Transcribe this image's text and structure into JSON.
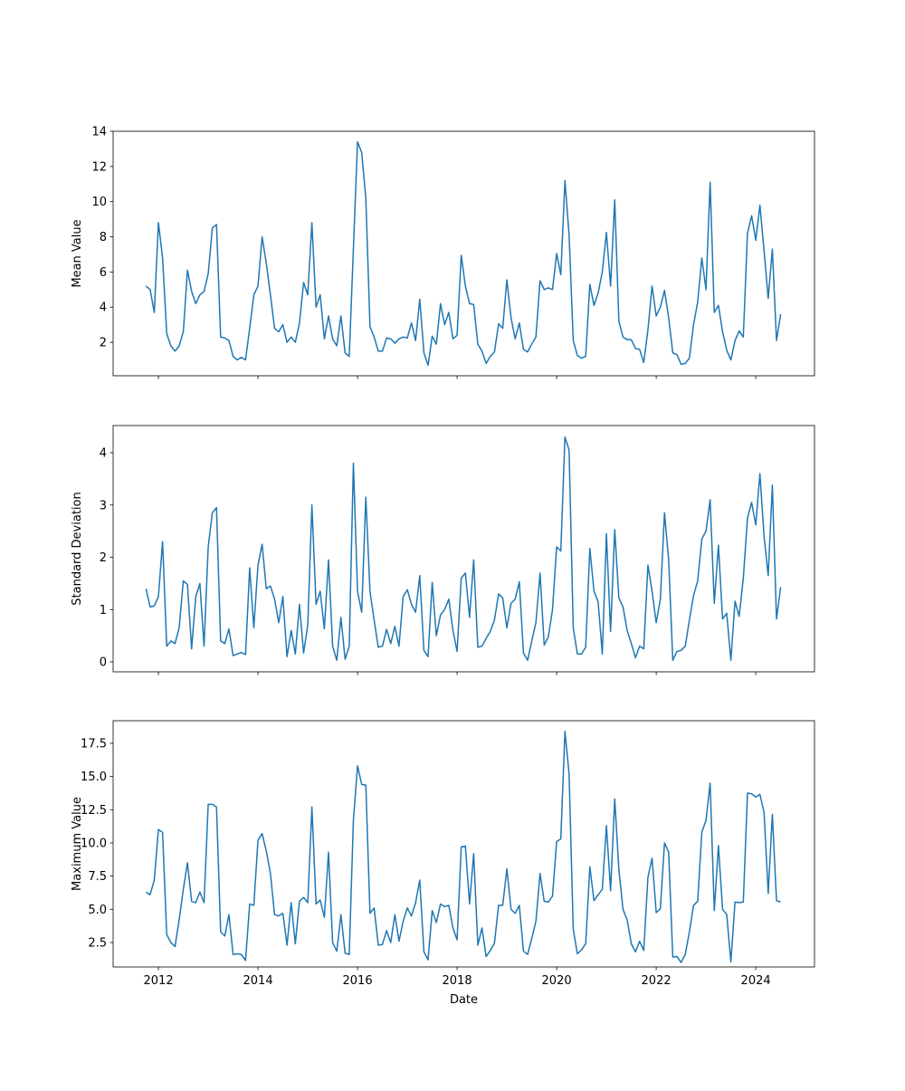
{
  "chart_data": [
    {
      "type": "line",
      "ylabel": "Mean Value",
      "xlabel": "",
      "x_start": "2011-10",
      "x_frequency": "monthly",
      "ylim": [
        0.1,
        14.0
      ],
      "yticks": [
        2,
        4,
        6,
        8,
        10,
        12,
        14
      ],
      "ytick_labels": [
        "2",
        "4",
        "6",
        "8",
        "10",
        "12",
        "14"
      ],
      "color": "#1f77b4",
      "values": [
        5.2,
        5.0,
        3.7,
        8.8,
        6.8,
        2.5,
        1.8,
        1.5,
        1.8,
        2.6,
        6.1,
        4.9,
        4.2,
        4.7,
        4.9,
        5.9,
        8.5,
        8.7,
        2.3,
        2.25,
        2.1,
        1.2,
        1.0,
        1.15,
        1.0,
        2.8,
        4.7,
        5.2,
        8.0,
        6.5,
        4.7,
        2.8,
        2.6,
        3.0,
        2.0,
        2.3,
        2.0,
        3.1,
        5.4,
        4.7,
        8.8,
        4.0,
        4.7,
        2.2,
        3.5,
        2.2,
        1.8,
        3.5,
        1.4,
        1.2,
        7.3,
        13.4,
        12.8,
        10.2,
        2.9,
        2.3,
        1.5,
        1.5,
        2.25,
        2.2,
        1.95,
        2.2,
        2.3,
        2.25,
        3.1,
        2.1,
        4.45,
        1.4,
        0.7,
        2.35,
        1.9,
        4.2,
        3.0,
        3.7,
        2.2,
        2.4,
        6.95,
        5.2,
        4.2,
        4.15,
        1.9,
        1.5,
        0.8,
        1.2,
        1.45,
        3.05,
        2.8,
        5.55,
        3.4,
        2.2,
        3.1,
        1.6,
        1.45,
        1.9,
        2.3,
        5.5,
        5.0,
        5.1,
        5.0,
        7.05,
        5.85,
        11.2,
        8.1,
        2.1,
        1.25,
        1.1,
        1.2,
        5.3,
        4.1,
        4.8,
        6.0,
        8.25,
        5.2,
        10.1,
        3.2,
        2.3,
        2.15,
        2.15,
        1.65,
        1.6,
        0.85,
        2.7,
        5.2,
        3.5,
        4.0,
        4.95,
        3.4,
        1.4,
        1.3,
        0.75,
        0.8,
        1.1,
        3.0,
        4.3,
        6.8,
        5.0,
        11.1,
        3.7,
        4.1,
        2.6,
        1.55,
        1.0,
        2.1,
        2.65,
        2.3,
        8.2,
        9.2,
        7.8,
        9.8,
        7.2,
        4.5,
        7.3,
        2.1,
        3.6
      ]
    },
    {
      "type": "line",
      "ylabel": "Standard Deviation",
      "xlabel": "",
      "x_start": "2011-10",
      "x_frequency": "monthly",
      "ylim": [
        -0.19,
        4.52
      ],
      "yticks": [
        0,
        1,
        2,
        3,
        4
      ],
      "ytick_labels": [
        "0",
        "1",
        "2",
        "3",
        "4"
      ],
      "color": "#1f77b4",
      "values": [
        1.4,
        1.05,
        1.07,
        1.25,
        2.3,
        0.3,
        0.4,
        0.35,
        0.65,
        1.55,
        1.48,
        0.25,
        1.25,
        1.5,
        0.3,
        2.2,
        2.85,
        2.95,
        0.4,
        0.35,
        0.63,
        0.12,
        0.15,
        0.18,
        0.14,
        1.8,
        0.65,
        1.85,
        2.25,
        1.4,
        1.45,
        1.2,
        0.75,
        1.25,
        0.1,
        0.6,
        0.15,
        1.1,
        0.17,
        0.7,
        3.0,
        1.1,
        1.35,
        0.63,
        1.95,
        0.3,
        0.03,
        0.85,
        0.05,
        0.3,
        3.8,
        1.35,
        0.95,
        3.15,
        1.35,
        0.8,
        0.28,
        0.3,
        0.62,
        0.35,
        0.68,
        0.3,
        1.25,
        1.38,
        1.1,
        0.95,
        1.65,
        0.22,
        0.1,
        1.52,
        0.5,
        0.9,
        1.0,
        1.2,
        0.6,
        0.2,
        1.6,
        1.7,
        0.85,
        1.95,
        0.28,
        0.3,
        0.45,
        0.58,
        0.8,
        1.3,
        1.22,
        0.65,
        1.12,
        1.2,
        1.53,
        0.17,
        0.03,
        0.4,
        0.75,
        1.7,
        0.32,
        0.48,
        1.0,
        2.2,
        2.12,
        4.3,
        4.05,
        0.65,
        0.15,
        0.15,
        0.28,
        2.17,
        1.35,
        1.15,
        0.15,
        2.45,
        0.58,
        2.53,
        1.22,
        1.05,
        0.6,
        0.35,
        0.08,
        0.3,
        0.25,
        1.85,
        1.35,
        0.75,
        1.2,
        2.85,
        1.95,
        0.03,
        0.2,
        0.22,
        0.3,
        0.8,
        1.27,
        1.55,
        2.35,
        2.5,
        3.1,
        1.12,
        2.23,
        0.82,
        0.93,
        0.03,
        1.16,
        0.87,
        1.6,
        2.75,
        3.05,
        2.62,
        3.6,
        2.4,
        1.65,
        3.38,
        0.82,
        1.43
      ]
    },
    {
      "type": "line",
      "ylabel": "Maximum Value",
      "xlabel": "Date",
      "x_start": "2011-10",
      "x_frequency": "monthly",
      "ylim": [
        0.66,
        19.2
      ],
      "yticks": [
        2.5,
        5.0,
        7.5,
        10.0,
        12.5,
        15.0,
        17.5
      ],
      "ytick_labels": [
        "2.5",
        "5.0",
        "7.5",
        "10.0",
        "12.5",
        "15.0",
        "17.5"
      ],
      "color": "#1f77b4",
      "values": [
        6.3,
        6.1,
        7.2,
        11.0,
        10.8,
        3.1,
        2.5,
        2.2,
        4.2,
        6.5,
        8.5,
        5.6,
        5.5,
        6.3,
        5.5,
        12.9,
        12.9,
        12.7,
        3.3,
        3.0,
        4.6,
        1.6,
        1.65,
        1.6,
        1.15,
        5.4,
        5.3,
        10.2,
        10.7,
        9.4,
        7.7,
        4.6,
        4.5,
        4.7,
        2.3,
        5.5,
        2.4,
        5.6,
        5.9,
        5.5,
        12.7,
        5.4,
        5.7,
        4.4,
        9.3,
        2.5,
        1.85,
        4.6,
        1.7,
        1.6,
        11.7,
        15.8,
        14.4,
        14.35,
        4.7,
        5.1,
        2.3,
        2.35,
        3.4,
        2.5,
        4.6,
        2.6,
        4.1,
        5.1,
        4.5,
        5.5,
        7.2,
        1.8,
        1.2,
        4.9,
        4.0,
        5.4,
        5.2,
        5.3,
        3.6,
        2.7,
        9.7,
        9.75,
        5.4,
        9.2,
        2.3,
        3.6,
        1.45,
        1.9,
        2.45,
        5.3,
        5.3,
        8.05,
        5.0,
        4.7,
        5.3,
        1.85,
        1.6,
        2.8,
        4.1,
        7.7,
        5.6,
        5.55,
        6.0,
        10.1,
        10.3,
        18.4,
        15.2,
        3.5,
        1.65,
        1.95,
        2.4,
        8.2,
        5.65,
        6.1,
        6.5,
        11.3,
        6.4,
        13.3,
        8.0,
        5.0,
        4.2,
        2.4,
        1.8,
        2.6,
        1.9,
        7.4,
        8.85,
        4.75,
        5.05,
        10.0,
        9.3,
        1.4,
        1.45,
        1.0,
        1.6,
        3.3,
        5.3,
        5.6,
        10.8,
        11.7,
        14.5,
        4.9,
        9.8,
        5.0,
        4.6,
        1.05,
        5.55,
        5.5,
        5.55,
        13.75,
        13.7,
        13.45,
        13.65,
        12.3,
        6.2,
        12.15,
        5.65,
        5.55
      ]
    }
  ],
  "x_axis": {
    "xlim": [
      2011.09,
      2025.18
    ],
    "ticks": [
      2012,
      2014,
      2016,
      2018,
      2020,
      2022,
      2024
    ],
    "tick_labels": [
      "2012",
      "2014",
      "2016",
      "2018",
      "2020",
      "2022",
      "2024"
    ]
  }
}
